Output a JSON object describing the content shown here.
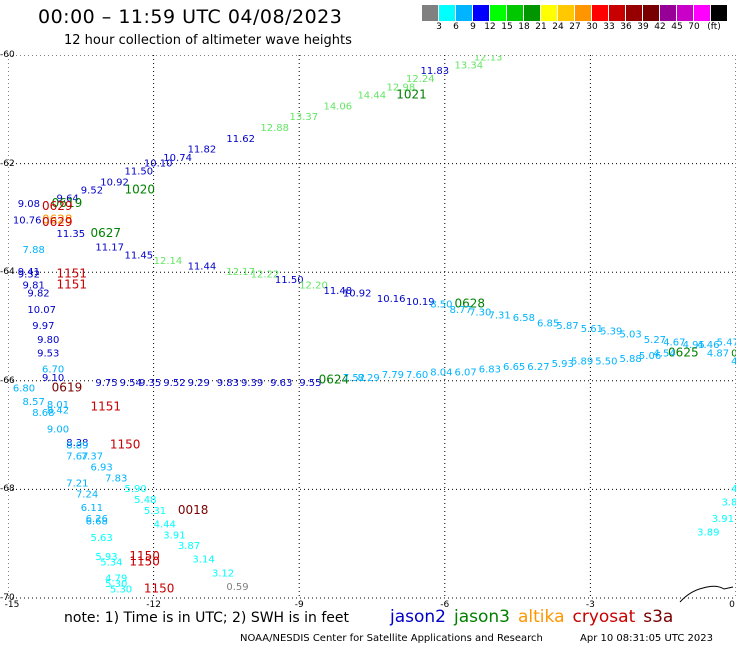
{
  "header": {
    "title": "00:00 – 11:59 UTC 04/08/2023",
    "subtitle": "12 hour collection of altimeter wave heights"
  },
  "colorbar": {
    "colors": [
      "#808080",
      "#00ffff",
      "#00b4ff",
      "#0000ff",
      "#00ff00",
      "#00c800",
      "#009600",
      "#ffff00",
      "#ffc800",
      "#ff9600",
      "#ff0000",
      "#c80000",
      "#960000",
      "#780000",
      "#960096",
      "#c800c8",
      "#ff00ff",
      "#000000"
    ],
    "ticks": [
      "3",
      "6",
      "9",
      "12",
      "15",
      "18",
      "21",
      "24",
      "27",
      "30",
      "33",
      "36",
      "39",
      "42",
      "45",
      "70",
      "(ft)"
    ]
  },
  "axes": {
    "y_labels": [
      "-60",
      "-62",
      "-64",
      "-66",
      "-68",
      "-70"
    ],
    "x_labels": [
      "-15",
      "-12",
      "-9",
      "-6",
      "-3",
      "0"
    ]
  },
  "track_colors": {
    "jason2": "#0000c8",
    "jason3": "#008000",
    "altika": "#ff9600",
    "cryosat": "#c80000",
    "s3a": "#780000"
  },
  "chart_data": {
    "type": "scatter",
    "x_range": [
      -15,
      0
    ],
    "y_range": [
      -70,
      -60
    ],
    "grid": true,
    "labels": [
      {
        "t": "12.13",
        "lon": -5.4,
        "lat": -60.1,
        "c": "#64e664"
      },
      {
        "t": "13.34",
        "lon": -5.8,
        "lat": -60.25,
        "c": "#64e664"
      },
      {
        "t": "11.83",
        "lon": -6.5,
        "lat": -60.35,
        "c": "#0000c8"
      },
      {
        "t": "12.24",
        "lon": -6.8,
        "lat": -60.5,
        "c": "#64e664"
      },
      {
        "t": "12.98",
        "lon": -7.2,
        "lat": -60.65,
        "c": "#64e664"
      },
      {
        "t": "1021",
        "lon": -7,
        "lat": -60.8,
        "c": "#008000"
      },
      {
        "t": "14.44",
        "lon": -7.8,
        "lat": -60.8,
        "c": "#64e664"
      },
      {
        "t": "14.06",
        "lon": -8.5,
        "lat": -61.0,
        "c": "#64e664"
      },
      {
        "t": "13.37",
        "lon": -9.2,
        "lat": -61.2,
        "c": "#64e664"
      },
      {
        "t": "12.88",
        "lon": -9.8,
        "lat": -61.4,
        "c": "#64e664"
      },
      {
        "t": "11.62",
        "lon": -10.5,
        "lat": -61.6,
        "c": "#0000c8"
      },
      {
        "t": "11.82",
        "lon": -11.3,
        "lat": -61.8,
        "c": "#0000c8"
      },
      {
        "t": "10.74",
        "lon": -11.8,
        "lat": -61.95,
        "c": "#0000c8"
      },
      {
        "t": "10.10",
        "lon": -12.2,
        "lat": -62.05,
        "c": "#0000c8"
      },
      {
        "t": "11.50",
        "lon": -12.6,
        "lat": -62.2,
        "c": "#0000c8"
      },
      {
        "t": "10.92",
        "lon": -13.1,
        "lat": -62.4,
        "c": "#0000c8"
      },
      {
        "t": "1020",
        "lon": -12.6,
        "lat": -62.55,
        "c": "#008000"
      },
      {
        "t": "9.52",
        "lon": -13.5,
        "lat": -62.55,
        "c": "#0000c8"
      },
      {
        "t": "9.64",
        "lon": -14.0,
        "lat": -62.7,
        "c": "#0000c8"
      },
      {
        "t": "9.08",
        "lon": -14.8,
        "lat": -62.8,
        "c": "#0000c8"
      },
      {
        "t": "0619",
        "lon": -14.1,
        "lat": -62.8,
        "c": "#008000"
      },
      {
        "t": "0629",
        "lon": -14.3,
        "lat": -62.85,
        "c": "#c80000"
      },
      {
        "t": "10.76",
        "lon": -14.9,
        "lat": -63.1,
        "c": "#0000c8"
      },
      {
        "t": "0628",
        "lon": -14.3,
        "lat": -63.1,
        "c": "#ff9600"
      },
      {
        "t": "0629",
        "lon": -14.3,
        "lat": -63.15,
        "c": "#c80000"
      },
      {
        "t": "11.35",
        "lon": -14.0,
        "lat": -63.35,
        "c": "#0000c8"
      },
      {
        "t": "0627",
        "lon": -13.3,
        "lat": -63.35,
        "c": "#008000"
      },
      {
        "t": "11.17",
        "lon": -13.2,
        "lat": -63.6,
        "c": "#0000c8"
      },
      {
        "t": "7.88",
        "lon": -14.7,
        "lat": -63.65,
        "c": "#00b4ff"
      },
      {
        "t": "11.45",
        "lon": -12.6,
        "lat": -63.75,
        "c": "#0000c8"
      },
      {
        "t": "12.14",
        "lon": -12.0,
        "lat": -63.85,
        "c": "#64e664"
      },
      {
        "t": "11.44",
        "lon": -11.3,
        "lat": -63.95,
        "c": "#0000c8"
      },
      {
        "t": "12.17",
        "lon": -10.5,
        "lat": -64.05,
        "c": "#64e664"
      },
      {
        "t": "12.22",
        "lon": -10.0,
        "lat": -64.1,
        "c": "#64e664"
      },
      {
        "t": "11.50",
        "lon": -9.5,
        "lat": -64.2,
        "c": "#0000c8"
      },
      {
        "t": "12.20",
        "lon": -9.0,
        "lat": -64.3,
        "c": "#64e664"
      },
      {
        "t": "11.48",
        "lon": -8.5,
        "lat": -64.4,
        "c": "#0000c8"
      },
      {
        "t": "10.92",
        "lon": -8.1,
        "lat": -64.45,
        "c": "#0000c8"
      },
      {
        "t": "10.16",
        "lon": -7.4,
        "lat": -64.55,
        "c": "#0000c8"
      },
      {
        "t": "10.19",
        "lon": -6.8,
        "lat": -64.6,
        "c": "#0000c8"
      },
      {
        "t": "8.50",
        "lon": -6.3,
        "lat": -64.65,
        "c": "#00b4ff"
      },
      {
        "t": "0628",
        "lon": -5.8,
        "lat": -64.65,
        "c": "#008000"
      },
      {
        "t": "8.77",
        "lon": -5.9,
        "lat": -64.75,
        "c": "#00b4ff"
      },
      {
        "t": "7.30",
        "lon": -5.5,
        "lat": -64.8,
        "c": "#00b4ff"
      },
      {
        "t": "7.31",
        "lon": -5.1,
        "lat": -64.85,
        "c": "#00b4ff"
      },
      {
        "t": "6.58",
        "lon": -4.6,
        "lat": -64.9,
        "c": "#00b4ff"
      },
      {
        "t": "6.85",
        "lon": -4.1,
        "lat": -65.0,
        "c": "#00b4ff"
      },
      {
        "t": "5.87",
        "lon": -3.7,
        "lat": -65.05,
        "c": "#00b4ff"
      },
      {
        "t": "5.61",
        "lon": -3.2,
        "lat": -65.1,
        "c": "#00b4ff"
      },
      {
        "t": "5.39",
        "lon": -2.8,
        "lat": -65.15,
        "c": "#00b4ff"
      },
      {
        "t": "5.03",
        "lon": -2.4,
        "lat": -65.2,
        "c": "#00b4ff"
      },
      {
        "t": "5.27",
        "lon": -1.9,
        "lat": -65.3,
        "c": "#00b4ff"
      },
      {
        "t": "4.67",
        "lon": -1.5,
        "lat": -65.35,
        "c": "#00b4ff"
      },
      {
        "t": "4.95",
        "lon": -1.1,
        "lat": -65.4,
        "c": "#00b4ff"
      },
      {
        "t": "4.46",
        "lon": -0.8,
        "lat": -65.4,
        "c": "#00b4ff"
      },
      {
        "t": "5.47",
        "lon": -0.4,
        "lat": -65.35,
        "c": "#00b4ff"
      },
      {
        "t": "0625",
        "lon": -1.4,
        "lat": -65.55,
        "c": "#008000"
      },
      {
        "t": "4.87",
        "lon": -0.6,
        "lat": -65.55,
        "c": "#00b4ff"
      },
      {
        "t": "9.41",
        "lon": -14.8,
        "lat": -64.05,
        "c": "#0000c8"
      },
      {
        "t": "9.32",
        "lon": -14.8,
        "lat": -64.1,
        "c": "#0000c8"
      },
      {
        "t": "1151",
        "lon": -14.0,
        "lat": -64.1,
        "c": "#c80000"
      },
      {
        "t": "9.81",
        "lon": -14.7,
        "lat": -64.3,
        "c": "#0000c8"
      },
      {
        "t": "1151",
        "lon": -14.0,
        "lat": -64.3,
        "c": "#c80000"
      },
      {
        "t": "9.82",
        "lon": -14.6,
        "lat": -64.45,
        "c": "#0000c8"
      },
      {
        "t": "10.07",
        "lon": -14.6,
        "lat": -64.75,
        "c": "#0000c8"
      },
      {
        "t": "9.97",
        "lon": -14.5,
        "lat": -65.05,
        "c": "#0000c8"
      },
      {
        "t": "9.80",
        "lon": -14.4,
        "lat": -65.3,
        "c": "#0000c8"
      },
      {
        "t": "9.53",
        "lon": -14.4,
        "lat": -65.55,
        "c": "#0000c8"
      },
      {
        "t": "6.70",
        "lon": -14.3,
        "lat": -65.85,
        "c": "#00b4ff"
      },
      {
        "t": "9.10",
        "lon": -14.3,
        "lat": -66.0,
        "c": "#0000c8"
      },
      {
        "t": "6.80",
        "lon": -14.9,
        "lat": -66.2,
        "c": "#00b4ff"
      },
      {
        "t": "9.75",
        "lon": -13.2,
        "lat": -66.1,
        "c": "#0000c8"
      },
      {
        "t": "9.54",
        "lon": -12.7,
        "lat": -66.1,
        "c": "#0000c8"
      },
      {
        "t": "9.35",
        "lon": -12.3,
        "lat": -66.1,
        "c": "#0000c8"
      },
      {
        "t": "9.52",
        "lon": -11.8,
        "lat": -66.1,
        "c": "#0000c8"
      },
      {
        "t": "9.29",
        "lon": -11.3,
        "lat": -66.1,
        "c": "#0000c8"
      },
      {
        "t": "9.83",
        "lon": -10.7,
        "lat": -66.1,
        "c": "#0000c8"
      },
      {
        "t": "9.39",
        "lon": -10.2,
        "lat": -66.1,
        "c": "#0000c8"
      },
      {
        "t": "9.63",
        "lon": -9.6,
        "lat": -66.1,
        "c": "#0000c8"
      },
      {
        "t": "9.55",
        "lon": -9.0,
        "lat": -66.1,
        "c": "#0000c8"
      },
      {
        "t": "0624",
        "lon": -8.6,
        "lat": -66.05,
        "c": "#008000"
      },
      {
        "t": "7.52",
        "lon": -8.1,
        "lat": -66.0,
        "c": "#00b4ff"
      },
      {
        "t": "8.29",
        "lon": -7.8,
        "lat": -66.0,
        "c": "#00b4ff"
      },
      {
        "t": "7.79",
        "lon": -7.3,
        "lat": -65.95,
        "c": "#00b4ff"
      },
      {
        "t": "7.60",
        "lon": -6.8,
        "lat": -65.95,
        "c": "#00b4ff"
      },
      {
        "t": "8.04",
        "lon": -6.3,
        "lat": -65.9,
        "c": "#00b4ff"
      },
      {
        "t": "6.07",
        "lon": -5.8,
        "lat": -65.9,
        "c": "#00b4ff"
      },
      {
        "t": "6.83",
        "lon": -5.3,
        "lat": -65.85,
        "c": "#00b4ff"
      },
      {
        "t": "6.65",
        "lon": -4.8,
        "lat": -65.8,
        "c": "#00b4ff"
      },
      {
        "t": "6.27",
        "lon": -4.3,
        "lat": -65.8,
        "c": "#00b4ff"
      },
      {
        "t": "5.93",
        "lon": -3.8,
        "lat": -65.75,
        "c": "#00b4ff"
      },
      {
        "t": "5.89",
        "lon": -3.4,
        "lat": -65.7,
        "c": "#00b4ff"
      },
      {
        "t": "5.50",
        "lon": -2.9,
        "lat": -65.7,
        "c": "#00b4ff"
      },
      {
        "t": "5.88",
        "lon": -2.4,
        "lat": -65.65,
        "c": "#00b4ff"
      },
      {
        "t": "5.06",
        "lon": -2.0,
        "lat": -65.6,
        "c": "#00b4ff"
      },
      {
        "t": "4.54",
        "lon": -1.7,
        "lat": -65.55,
        "c": "#00b4ff"
      },
      {
        "t": "0619",
        "lon": -14.1,
        "lat": -66.2,
        "c": "#780000"
      },
      {
        "t": "8.57",
        "lon": -14.7,
        "lat": -66.45,
        "c": "#00b4ff"
      },
      {
        "t": "8.01",
        "lon": -14.2,
        "lat": -66.5,
        "c": "#00b4ff"
      },
      {
        "t": "8.42",
        "lon": -14.2,
        "lat": -66.6,
        "c": "#00b4ff"
      },
      {
        "t": "1151",
        "lon": -13.3,
        "lat": -66.55,
        "c": "#c80000"
      },
      {
        "t": "8.68",
        "lon": -14.5,
        "lat": -66.65,
        "c": "#00b4ff"
      },
      {
        "t": "9.00",
        "lon": -14.2,
        "lat": -66.95,
        "c": "#00b4ff"
      },
      {
        "t": "8.38",
        "lon": -13.8,
        "lat": -67.2,
        "c": "#0000c8"
      },
      {
        "t": "8.89",
        "lon": -13.8,
        "lat": -67.25,
        "c": "#00b4ff"
      },
      {
        "t": "1150",
        "lon": -12.9,
        "lat": -67.25,
        "c": "#c80000"
      },
      {
        "t": "7.67",
        "lon": -13.8,
        "lat": -67.45,
        "c": "#00b4ff"
      },
      {
        "t": "7.37",
        "lon": -13.5,
        "lat": -67.45,
        "c": "#00b4ff"
      },
      {
        "t": "6.93",
        "lon": -13.3,
        "lat": -67.65,
        "c": "#00b4ff"
      },
      {
        "t": "7.83",
        "lon": -13.0,
        "lat": -67.85,
        "c": "#00b4ff"
      },
      {
        "t": "7.21",
        "lon": -13.8,
        "lat": -67.95,
        "c": "#00b4ff"
      },
      {
        "t": "5.90",
        "lon": -12.6,
        "lat": -68.05,
        "c": "#00ffff"
      },
      {
        "t": "7.24",
        "lon": -13.6,
        "lat": -68.15,
        "c": "#00b4ff"
      },
      {
        "t": "5.48",
        "lon": -12.4,
        "lat": -68.25,
        "c": "#00ffff"
      },
      {
        "t": "6.11",
        "lon": -13.5,
        "lat": -68.4,
        "c": "#00b4ff"
      },
      {
        "t": "5.31",
        "lon": -12.2,
        "lat": -68.45,
        "c": "#00ffff"
      },
      {
        "t": "0018",
        "lon": -11.5,
        "lat": -68.45,
        "c": "#780000"
      },
      {
        "t": "6.26",
        "lon": -13.4,
        "lat": -68.6,
        "c": "#00b4ff"
      },
      {
        "t": "6.68",
        "lon": -13.4,
        "lat": -68.65,
        "c": "#00b4ff"
      },
      {
        "t": "4.44",
        "lon": -12.0,
        "lat": -68.7,
        "c": "#00ffff"
      },
      {
        "t": "3.91",
        "lon": -11.8,
        "lat": -68.9,
        "c": "#00ffff"
      },
      {
        "t": "5.63",
        "lon": -13.3,
        "lat": -68.95,
        "c": "#00ffff"
      },
      {
        "t": "3.87",
        "lon": -11.5,
        "lat": -69.1,
        "c": "#00ffff"
      },
      {
        "t": "5.93",
        "lon": -13.2,
        "lat": -69.3,
        "c": "#00ffff"
      },
      {
        "t": "5.34",
        "lon": -13.1,
        "lat": -69.4,
        "c": "#00ffff"
      },
      {
        "t": "1150",
        "lon": -12.5,
        "lat": -69.3,
        "c": "#c80000"
      },
      {
        "t": "1150",
        "lon": -12.5,
        "lat": -69.4,
        "c": "#c80000"
      },
      {
        "t": "3.14",
        "lon": -11.2,
        "lat": -69.35,
        "c": "#00ffff"
      },
      {
        "t": "3.12",
        "lon": -10.8,
        "lat": -69.6,
        "c": "#00ffff"
      },
      {
        "t": "4.79",
        "lon": -13.0,
        "lat": -69.7,
        "c": "#00ffff"
      },
      {
        "t": "5.30",
        "lon": -13.0,
        "lat": -69.8,
        "c": "#00ffff"
      },
      {
        "t": "5.30",
        "lon": -12.9,
        "lat": -69.9,
        "c": "#00ffff"
      },
      {
        "t": "0.59",
        "lon": -10.5,
        "lat": -69.85,
        "c": "#808080"
      },
      {
        "t": "1150",
        "lon": -12.2,
        "lat": -69.9,
        "c": "#c80000"
      },
      {
        "t": "3.8",
        "lon": -0.3,
        "lat": -68.3,
        "c": "#00ffff"
      },
      {
        "t": "3.91",
        "lon": -0.5,
        "lat": -68.6,
        "c": "#00ffff"
      },
      {
        "t": "3.89",
        "lon": -0.8,
        "lat": -68.85,
        "c": "#00ffff"
      },
      {
        "t": "4",
        "lon": -0.1,
        "lat": -68.05,
        "c": "#00ffff"
      },
      {
        "t": "0",
        "lon": -0.1,
        "lat": -65.55,
        "c": "#008000"
      },
      {
        "t": "4.7",
        "lon": -0.1,
        "lat": -65.7,
        "c": "#00b4ff"
      }
    ]
  },
  "footer": {
    "note": "note:  1)  Time is in UTC;  2)  SWH is in feet",
    "legend": [
      {
        "name": "jason2",
        "color": "#0000c8"
      },
      {
        "name": "jason3",
        "color": "#008000"
      },
      {
        "name": "altika",
        "color": "#ff9600"
      },
      {
        "name": "cryosat",
        "color": "#c80000"
      },
      {
        "name": "s3a",
        "color": "#780000"
      }
    ],
    "credit": "NOAA/NESDIS Center for Satellite Applications and Research",
    "stamp": "Apr 10 08:31:05 UTC 2023"
  }
}
